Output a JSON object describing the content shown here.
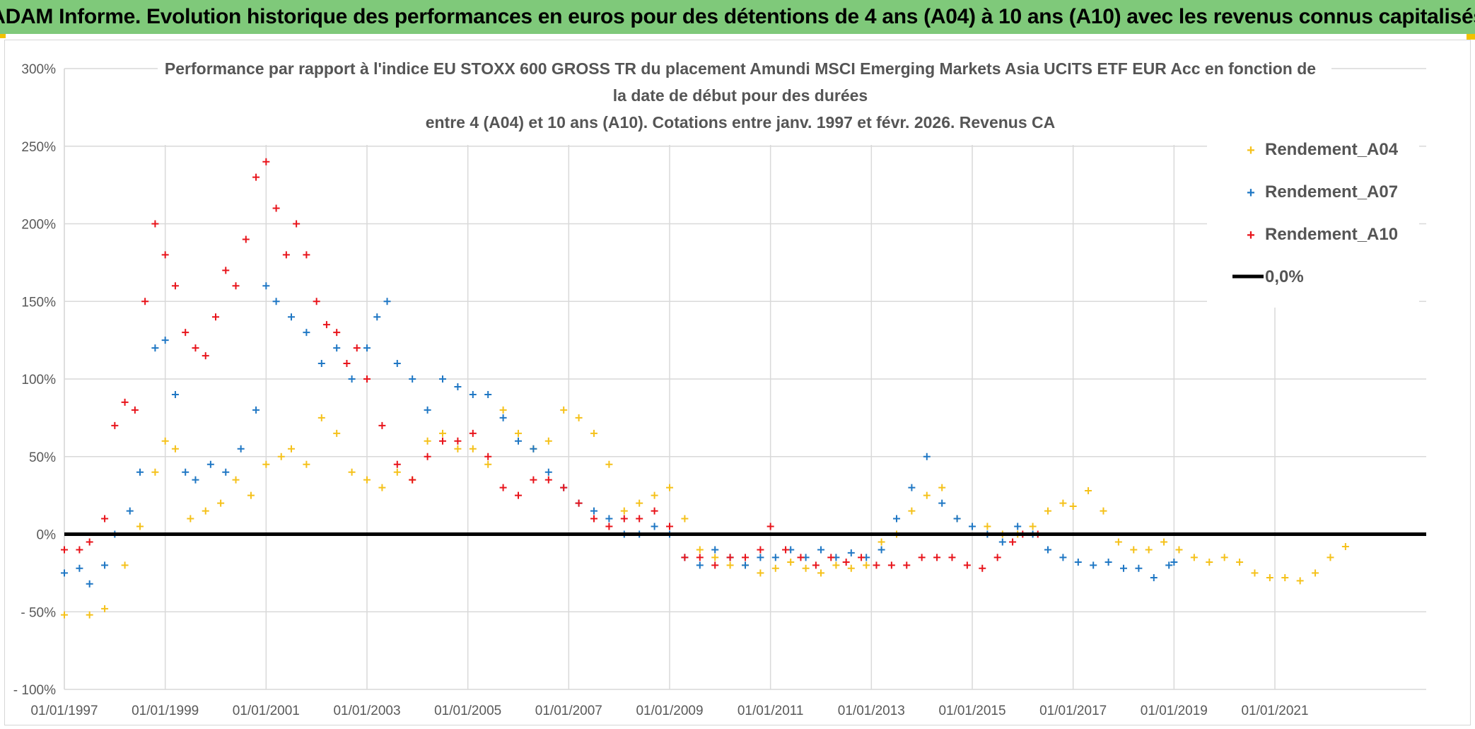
{
  "banner": {
    "title": "ADAM Informe. Evolution historique des performances en euros pour des détentions de 4 ans (A04) à 10 ans (A10) avec les revenus connus capitalisés"
  },
  "colors": {
    "banner_bg": "#7fc97a",
    "a04": "#f5c11a",
    "a07": "#1f77c4",
    "a10": "#e8141b",
    "zero": "#000000",
    "grid": "#d9d9d9"
  },
  "chart_data": {
    "type": "scatter",
    "title_lines": [
      "Performance par rapport à l'indice EU STOXX 600 GROSS TR  du placement Amundi MSCI Emerging Markets Asia UCITS ETF EUR Acc en fonction de",
      "la date de début pour des durées",
      "entre 4 (A04) et 10 ans (A10). Cotations entre janv. 1997 et févr. 2026. Revenus CA"
    ],
    "xlabel": "",
    "ylabel": "",
    "xlim": [
      1997.0,
      2024.0
    ],
    "ylim": [
      -100,
      300
    ],
    "y_ticks": [
      -100,
      -50,
      0,
      50,
      100,
      150,
      200,
      250,
      300
    ],
    "y_tick_labels": [
      "- 100%",
      "- 50%",
      "0%",
      "50%",
      "100%",
      "150%",
      "200%",
      "250%",
      "300%"
    ],
    "x_ticks": [
      1997,
      1999,
      2001,
      2003,
      2005,
      2007,
      2009,
      2011,
      2013,
      2015,
      2017,
      2019,
      2021
    ],
    "x_tick_labels": [
      "01/01/1997",
      "01/01/1999",
      "01/01/2001",
      "01/01/2003",
      "01/01/2005",
      "01/01/2007",
      "01/01/2009",
      "01/01/2011",
      "01/01/2013",
      "01/01/2015",
      "01/01/2017",
      "01/01/2019",
      "01/01/2021"
    ],
    "legend_position": "top-right",
    "legend": [
      {
        "name": "Rendement_A04",
        "marker": "plus",
        "color": "#f5c11a"
      },
      {
        "name": "Rendement_A07",
        "marker": "plus",
        "color": "#1f77c4"
      },
      {
        "name": "Rendement_A10",
        "marker": "plus",
        "color": "#e8141b"
      },
      {
        "name": "0,0%",
        "marker": "line",
        "color": "#000000"
      }
    ],
    "series": [
      {
        "name": "Rendement_A04",
        "x": [
          1997.0,
          1997.5,
          1997.8,
          1998.2,
          1998.5,
          1998.8,
          1999.0,
          1999.2,
          1999.5,
          1999.8,
          2000.1,
          2000.4,
          2000.7,
          2001.0,
          2001.3,
          2001.5,
          2001.8,
          2002.1,
          2002.4,
          2002.7,
          2003.0,
          2003.3,
          2003.6,
          2003.9,
          2004.2,
          2004.5,
          2004.8,
          2005.1,
          2005.4,
          2005.7,
          2006.0,
          2006.3,
          2006.6,
          2006.9,
          2007.2,
          2007.5,
          2007.8,
          2008.1,
          2008.4,
          2008.7,
          2009.0,
          2009.3,
          2009.6,
          2009.9,
          2010.2,
          2010.5,
          2010.8,
          2011.1,
          2011.4,
          2011.7,
          2012.0,
          2012.3,
          2012.6,
          2012.9,
          2013.2,
          2013.5,
          2013.8,
          2014.1,
          2014.4,
          2014.7,
          2015.0,
          2015.3,
          2015.6,
          2015.9,
          2016.2,
          2016.5,
          2016.8,
          2017.0,
          2017.3,
          2017.6,
          2017.9,
          2018.2,
          2018.5,
          2018.8,
          2019.1,
          2019.4,
          2019.7,
          2020.0,
          2020.3,
          2020.6,
          2020.9,
          2021.2,
          2021.5,
          2021.8,
          2022.1,
          2022.4
        ],
        "values": [
          -52,
          -52,
          -48,
          -20,
          5,
          40,
          60,
          55,
          10,
          15,
          20,
          35,
          25,
          45,
          50,
          55,
          45,
          75,
          65,
          40,
          35,
          30,
          40,
          35,
          60,
          65,
          55,
          55,
          45,
          80,
          65,
          55,
          60,
          80,
          75,
          65,
          45,
          15,
          20,
          25,
          30,
          10,
          -10,
          -15,
          -20,
          -20,
          -25,
          -22,
          -18,
          -22,
          -25,
          -20,
          -22,
          -20,
          -5,
          0,
          15,
          25,
          30,
          10,
          5,
          5,
          0,
          0,
          5,
          15,
          20,
          18,
          28,
          15,
          -5,
          -10,
          -10,
          -5,
          -10,
          -15,
          -18,
          -15,
          -18,
          -25,
          -28,
          -28,
          -30,
          -25,
          -15,
          -8
        ]
      },
      {
        "name": "Rendement_A07",
        "x": [
          1997.0,
          1997.3,
          1997.5,
          1997.8,
          1998.0,
          1998.3,
          1998.5,
          1998.8,
          1999.0,
          1999.2,
          1999.4,
          1999.6,
          1999.9,
          2000.2,
          2000.5,
          2000.8,
          2001.0,
          2001.2,
          2001.5,
          2001.8,
          2002.1,
          2002.4,
          2002.7,
          2003.0,
          2003.2,
          2003.4,
          2003.6,
          2003.9,
          2004.2,
          2004.5,
          2004.8,
          2005.1,
          2005.4,
          2005.7,
          2006.0,
          2006.3,
          2006.6,
          2006.9,
          2007.2,
          2007.5,
          2007.8,
          2008.1,
          2008.4,
          2008.7,
          2009.0,
          2009.3,
          2009.6,
          2009.9,
          2010.2,
          2010.5,
          2010.8,
          2011.1,
          2011.4,
          2011.7,
          2012.0,
          2012.3,
          2012.6,
          2012.9,
          2013.2,
          2013.5,
          2013.8,
          2014.1,
          2014.4,
          2014.7,
          2015.0,
          2015.3,
          2015.6,
          2015.9,
          2016.2,
          2016.5,
          2016.8,
          2017.1,
          2017.4,
          2017.7,
          2018.0,
          2018.3,
          2018.6,
          2018.9,
          2019.0
        ],
        "values": [
          -25,
          -22,
          -32,
          -20,
          0,
          15,
          40,
          120,
          125,
          90,
          40,
          35,
          45,
          40,
          55,
          80,
          160,
          150,
          140,
          130,
          110,
          120,
          100,
          120,
          140,
          150,
          110,
          100,
          80,
          100,
          95,
          90,
          90,
          75,
          60,
          55,
          40,
          30,
          20,
          15,
          10,
          0,
          0,
          5,
          0,
          -15,
          -20,
          -10,
          -15,
          -20,
          -15,
          -15,
          -10,
          -15,
          -10,
          -15,
          -12,
          -15,
          -10,
          10,
          30,
          50,
          20,
          10,
          5,
          0,
          -5,
          5,
          0,
          -10,
          -15,
          -18,
          -20,
          -18,
          -22,
          -22,
          -28,
          -20,
          -18
        ]
      },
      {
        "name": "Rendement_A10",
        "x": [
          1997.0,
          1997.3,
          1997.5,
          1997.8,
          1998.0,
          1998.2,
          1998.4,
          1998.6,
          1998.8,
          1999.0,
          1999.2,
          1999.4,
          1999.6,
          1999.8,
          2000.0,
          2000.2,
          2000.4,
          2000.6,
          2000.8,
          2001.0,
          2001.2,
          2001.4,
          2001.6,
          2001.8,
          2002.0,
          2002.2,
          2002.4,
          2002.6,
          2002.8,
          2003.0,
          2003.3,
          2003.6,
          2003.9,
          2004.2,
          2004.5,
          2004.8,
          2005.1,
          2005.4,
          2005.7,
          2006.0,
          2006.3,
          2006.6,
          2006.9,
          2007.2,
          2007.5,
          2007.8,
          2008.1,
          2008.4,
          2008.7,
          2009.0,
          2009.3,
          2009.6,
          2009.9,
          2010.2,
          2010.5,
          2010.8,
          2011.0,
          2011.3,
          2011.6,
          2011.9,
          2012.2,
          2012.5,
          2012.8,
          2013.1,
          2013.4,
          2013.7,
          2014.0,
          2014.3,
          2014.6,
          2014.9,
          2015.2,
          2015.5,
          2015.8,
          2016.0,
          2016.3
        ],
        "values": [
          -10,
          -10,
          -5,
          10,
          70,
          85,
          80,
          150,
          200,
          180,
          160,
          130,
          120,
          115,
          140,
          170,
          160,
          190,
          230,
          240,
          210,
          180,
          200,
          180,
          150,
          135,
          130,
          110,
          120,
          100,
          70,
          45,
          35,
          50,
          60,
          60,
          65,
          50,
          30,
          25,
          35,
          35,
          30,
          20,
          10,
          5,
          10,
          10,
          15,
          5,
          -15,
          -15,
          -20,
          -15,
          -15,
          -10,
          5,
          -10,
          -15,
          -20,
          -15,
          -18,
          -15,
          -20,
          -20,
          -20,
          -15,
          -15,
          -15,
          -20,
          -22,
          -15,
          -5,
          0,
          0
        ]
      }
    ]
  }
}
